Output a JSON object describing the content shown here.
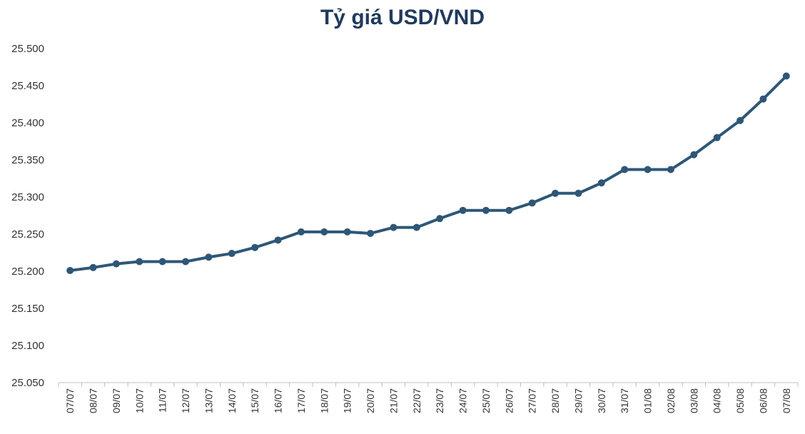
{
  "chart_data": {
    "type": "line",
    "title": "Tỷ giá USD/VND",
    "xlabel": "",
    "ylabel": "",
    "ylim": [
      25050,
      25500
    ],
    "ytick_step": 50,
    "ytick_labels": [
      "25.050",
      "25.100",
      "25.150",
      "25.200",
      "25.250",
      "25.300",
      "25.350",
      "25.400",
      "25.450",
      "25.500"
    ],
    "grid": false,
    "legend": "none",
    "categories": [
      "07/07",
      "08/07",
      "09/07",
      "10/07",
      "11/07",
      "12/07",
      "13/07",
      "14/07",
      "15/07",
      "16/07",
      "17/07",
      "18/07",
      "19/07",
      "20/07",
      "21/07",
      "22/07",
      "23/07",
      "24/07",
      "25/07",
      "26/07",
      "27/07",
      "28/07",
      "29/07",
      "30/07",
      "31/07",
      "01/08",
      "02/08",
      "03/08",
      "04/08",
      "05/08",
      "06/08",
      "07/08"
    ],
    "series": [
      {
        "color": "#2e5777",
        "values": [
          25201,
          25205,
          25210,
          25213,
          25213,
          25213,
          25219,
          25224,
          25232,
          25242,
          25253,
          25253,
          25253,
          25251,
          25259,
          25259,
          25271,
          25282,
          25282,
          25282,
          25292,
          25305,
          25305,
          25319,
          25337,
          25337,
          25337,
          25357,
          25380,
          25403,
          25432,
          25463
        ]
      }
    ]
  }
}
